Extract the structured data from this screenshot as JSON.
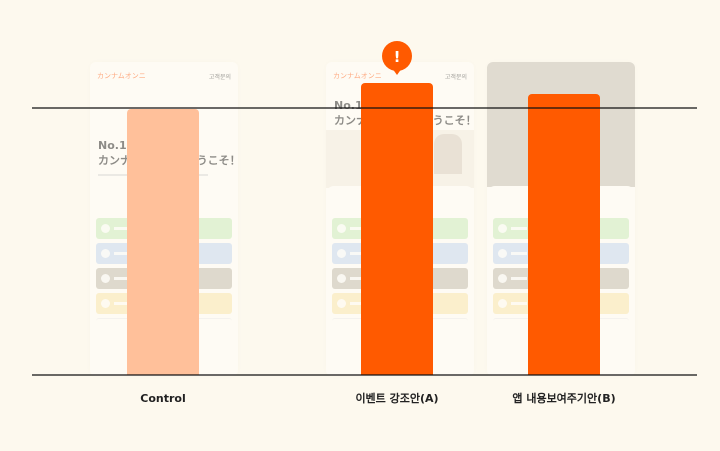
{
  "chart_data": {
    "type": "bar",
    "categories": [
      "Control",
      "이벤트 강조안(A)",
      "앱 내용보여주기안(B)"
    ],
    "values": [
      266,
      292,
      281
    ],
    "ylim": [
      0,
      292
    ],
    "grid": false,
    "legend": "none",
    "highlight_index": 1,
    "annotation": {
      "text": "!",
      "target_index": 1
    },
    "colors": {
      "control": "#ffc09a",
      "variant": "#ff5a00",
      "background": "#fdf9ee",
      "axis": "#111111"
    },
    "bar_colors": [
      "#ffc09a",
      "#ff5a00",
      "#ff5a00"
    ]
  },
  "mockups": [
    {
      "logo": "カンナムオンニ",
      "help": "고객문의",
      "headline": [
        "No.1 美容",
        "カンナムオンニへようこそ！"
      ],
      "style": "light"
    },
    {
      "logo": "カンナムオンニ",
      "help": "고객문의",
      "headline": [
        "No.1 美容アプリ",
        "カンナムオンニへようこそ！"
      ],
      "style": "banner"
    },
    {
      "logo": "",
      "help": "",
      "headline": [
        "",
        ""
      ],
      "style": "dark"
    }
  ],
  "login_colors": [
    "#cdeec0",
    "#c7d9f3",
    "#c6bfb3",
    "#fbe7b2"
  ]
}
